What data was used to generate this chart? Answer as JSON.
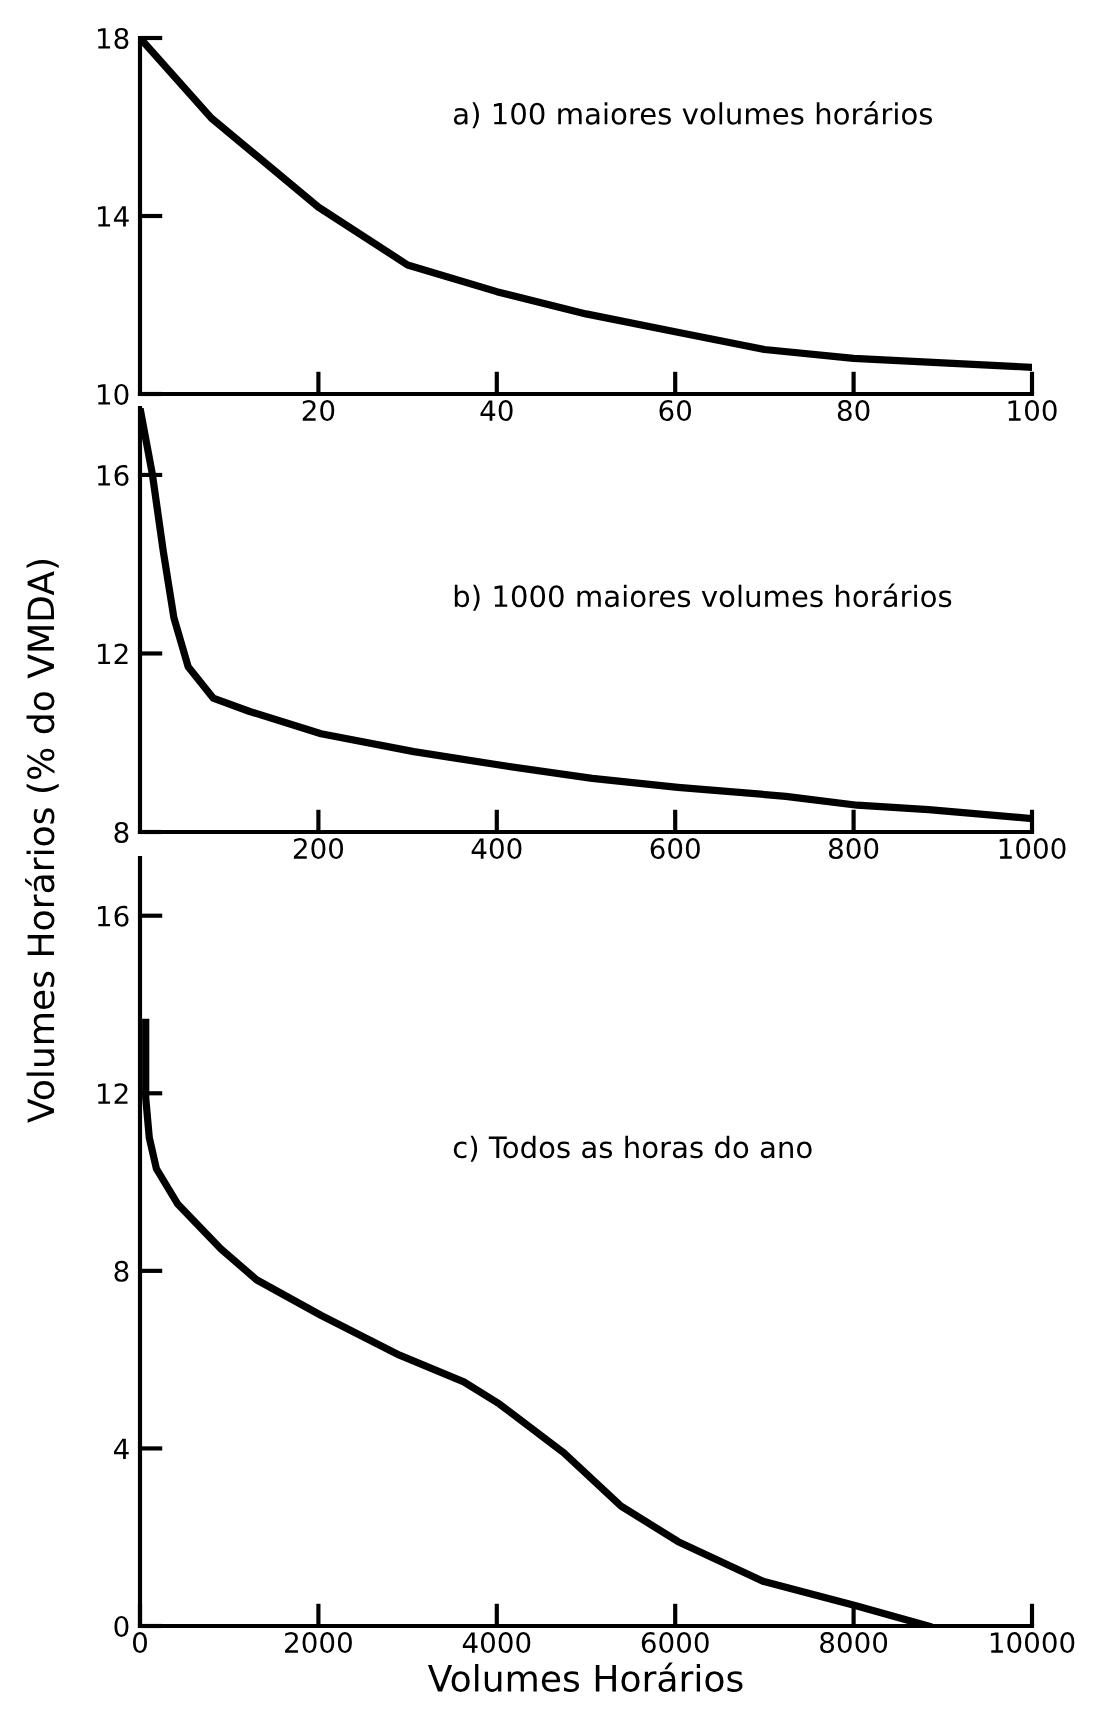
{
  "chart_data": [
    {
      "type": "line",
      "annotations": [
        "a) 100 maiores volumes horários"
      ],
      "xlim": [
        0,
        100
      ],
      "xticks": [
        20,
        40,
        60,
        80,
        100
      ],
      "ylim": [
        10,
        18
      ],
      "yticks": [
        10,
        14,
        18
      ],
      "grid": false,
      "legend": false,
      "marker": "none",
      "line_style": "solid",
      "series": [
        {
          "color": "#000000",
          "x": [
            0,
            8,
            20,
            30,
            40,
            50,
            60,
            70,
            80,
            90,
            100
          ],
          "values": [
            18.0,
            16.2,
            14.2,
            12.9,
            12.3,
            11.8,
            11.4,
            11.0,
            10.8,
            10.7,
            10.6
          ]
        }
      ]
    },
    {
      "type": "line",
      "ylabel": "Volumes Horários (% do VMDA)",
      "annotations": [
        "b) 1000 maiores volumes horários"
      ],
      "xlim": [
        0,
        1000
      ],
      "xticks": [
        200,
        400,
        600,
        800,
        1000
      ],
      "ylim": [
        8,
        17.5
      ],
      "yticks": [
        8,
        12,
        16
      ],
      "grid": false,
      "legend": false,
      "marker": "none",
      "line_style": "solid",
      "series": [
        {
          "color": "#000000",
          "x": [
            0,
            14,
            26,
            38,
            54,
            82,
            123,
            203,
            307,
            403,
            507,
            603,
            724,
            804,
            884,
            1000
          ],
          "values": [
            17.5,
            16.0,
            14.3,
            12.8,
            11.7,
            11.0,
            10.7,
            10.2,
            9.8,
            9.5,
            9.2,
            9.0,
            8.8,
            8.6,
            8.5,
            8.3
          ]
        }
      ]
    },
    {
      "type": "line",
      "xlabel": "Volumes Horários",
      "annotations": [
        "c) Todos as horas do ano"
      ],
      "xlim": [
        0,
        10000
      ],
      "xticks": [
        0,
        2000,
        4000,
        6000,
        8000,
        10000
      ],
      "ylim": [
        0,
        17.3
      ],
      "yticks": [
        0,
        4,
        8,
        12,
        16
      ],
      "grid": false,
      "legend": false,
      "marker": "none",
      "line_style": "solid",
      "series": [
        {
          "color": "#000000",
          "x": [
            64,
            64,
            104,
            184,
            425,
            905,
            1306,
            2027,
            2909,
            3630,
            4030,
            4752,
            5393,
            6034,
            6995,
            8037,
            8838
          ],
          "values": [
            13.6,
            11.9,
            11.0,
            10.3,
            9.5,
            8.5,
            7.8,
            7.0,
            6.1,
            5.5,
            5.0,
            3.9,
            2.7,
            1.9,
            1.0,
            0.45,
            0
          ]
        }
      ]
    }
  ]
}
